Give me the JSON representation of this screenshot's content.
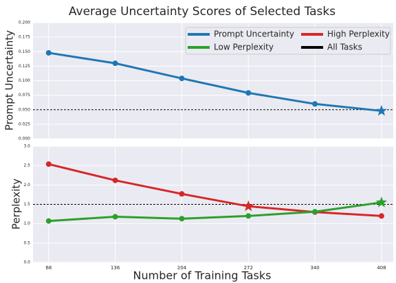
{
  "chart_data": [
    {
      "type": "line",
      "title": "Average Uncertainty Scores of Selected Tasks",
      "ylabel": "Prompt Uncertainty",
      "x": [
        68,
        136,
        204,
        272,
        340,
        408
      ],
      "xlim": [
        52,
        420
      ],
      "xticks": [
        68,
        136,
        204,
        272,
        340,
        408
      ],
      "xtick_labels": false,
      "ylim": [
        0,
        0.2
      ],
      "yticks": [
        {
          "value": 0,
          "label": "0.000"
        },
        {
          "value": 0.025,
          "label": "0.025"
        },
        {
          "value": 0.05,
          "label": "0.050"
        },
        {
          "value": 0.075,
          "label": "0.075"
        },
        {
          "value": 0.1,
          "label": "0.100"
        },
        {
          "value": 0.125,
          "label": "0.125"
        },
        {
          "value": 0.15,
          "label": "0.150"
        },
        {
          "value": 0.175,
          "label": "0.175"
        },
        {
          "value": 0.2,
          "label": "0.200"
        }
      ],
      "grid": true,
      "legend": "upper right",
      "series": [
        {
          "name": "Prompt Uncertainty",
          "color": "#1f77b4",
          "values": [
            0.148,
            0.13,
            0.104,
            0.079,
            0.06,
            0.048
          ],
          "star_x": 408
        }
      ],
      "reference_line": {
        "name": "All Tasks",
        "value": 0.05,
        "color": "#000000"
      }
    },
    {
      "type": "line",
      "ylabel": "Perplexity",
      "xlabel": "Number of Training Tasks",
      "x": [
        68,
        136,
        204,
        272,
        340,
        408
      ],
      "xlim": [
        52,
        420
      ],
      "xticks": [
        68,
        136,
        204,
        272,
        340,
        408
      ],
      "xtick_labels": true,
      "ylim": [
        0,
        3
      ],
      "yticks": [
        {
          "value": 0,
          "label": "0.0"
        },
        0.5,
        {
          "value": 1,
          "label": "1.0"
        },
        1.5,
        {
          "value": 2,
          "label": "2.0"
        },
        2.5,
        {
          "value": 3,
          "label": "3.0"
        }
      ],
      "grid": true,
      "series": [
        {
          "name": "High Perplexity",
          "color": "#d62728",
          "values": [
            2.54,
            2.12,
            1.77,
            1.45,
            1.3,
            1.2
          ],
          "star_x": 272
        },
        {
          "name": "Low Perplexity",
          "color": "#2ca02c",
          "values": [
            1.07,
            1.18,
            1.13,
            1.2,
            1.31,
            1.55
          ],
          "star_x": 408
        }
      ],
      "reference_line": {
        "value": 1.5,
        "color": "#000000"
      }
    }
  ]
}
